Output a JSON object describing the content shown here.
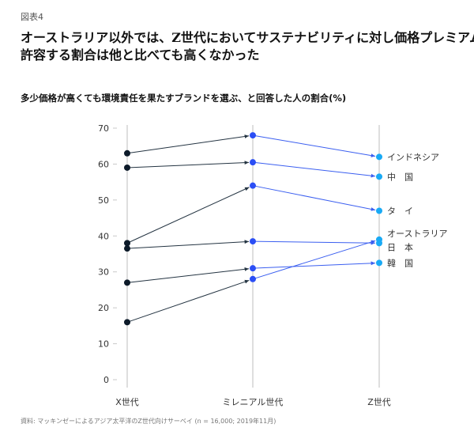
{
  "figure_label": "図表4",
  "headline": [
    "オーストラリア以外では、Z世代においてサステナビリティに対し価格プレミアムを",
    "許容する割合は他と比べても高くなかった"
  ],
  "subtitle": "多少価格が高くても環境責任を果たすブランドを選ぶ、と回答した人の割合(%)",
  "source": "資料: マッキンゼーによるアジア太平洋のZ世代向けサーベイ (n = 16,000; 2019年11月)",
  "colors": {
    "dark": "#0d1b2a",
    "mid": "#2b4ef5",
    "light": "#19aaf5",
    "dark_line": "#243442",
    "blue_line": "#3b5ff0",
    "axis": "#c9c9c9",
    "text": "#333333"
  },
  "chart_data": {
    "type": "line",
    "title": "多少価格が高くても環境責任を果たすブランドを選ぶ、と回答した人の割合(%)",
    "categories": [
      "X世代",
      "ミレニアル世代",
      "Z世代"
    ],
    "ylim": [
      0,
      70
    ],
    "yticks": [
      0,
      10,
      20,
      30,
      40,
      50,
      60,
      70
    ],
    "series": [
      {
        "name": "インドネシア",
        "values": [
          63,
          68,
          62
        ]
      },
      {
        "name": "中国",
        "values": [
          59,
          60.5,
          56.5
        ]
      },
      {
        "name": "タイ",
        "values": [
          38,
          54,
          47
        ]
      },
      {
        "name": "オーストラリア",
        "values": [
          16,
          28,
          39
        ]
      },
      {
        "name": "日本",
        "values": [
          36.5,
          38.5,
          38
        ]
      },
      {
        "name": "韓国",
        "values": [
          27,
          31,
          32.5
        ]
      }
    ],
    "labels": [
      "インドネシア",
      "中　国",
      "タ　イ",
      "オーストラリア",
      "日　本",
      "韓　国"
    ]
  }
}
